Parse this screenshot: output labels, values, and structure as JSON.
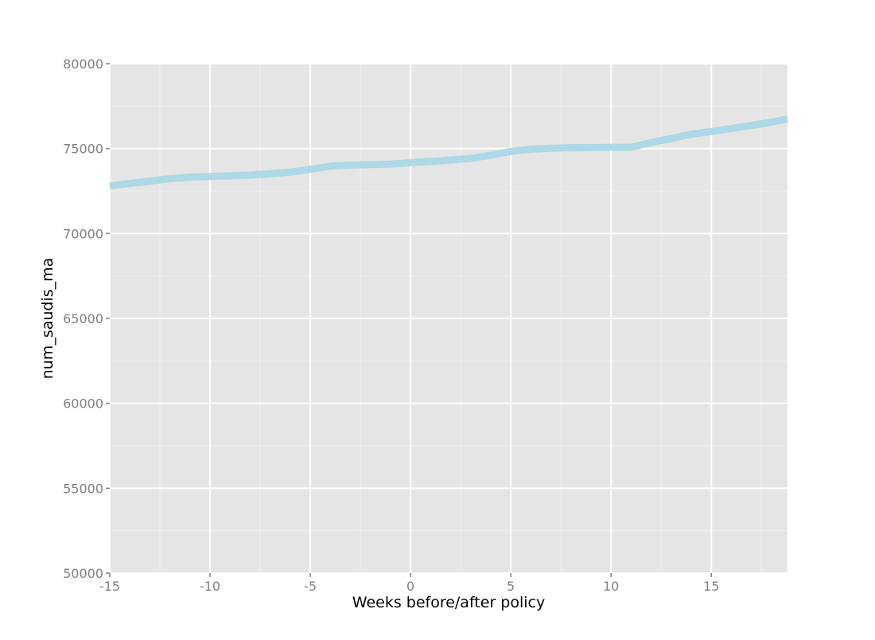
{
  "chart_data": {
    "type": "line",
    "title": "",
    "xlabel": "Weeks before/after policy",
    "ylabel": "num_saudis_ma",
    "xlim": [
      -15,
      18.8
    ],
    "ylim": [
      50000,
      80000
    ],
    "x_ticks": [
      -15,
      -10,
      -5,
      0,
      5,
      10,
      15
    ],
    "x_tick_labels": [
      "-15",
      "-10",
      "-5",
      "0",
      "5",
      "10",
      "15"
    ],
    "y_ticks": [
      50000,
      55000,
      60000,
      65000,
      70000,
      75000,
      80000
    ],
    "y_tick_labels": [
      "50000",
      "55000",
      "60000",
      "65000",
      "70000",
      "75000",
      "80000"
    ],
    "grid": true,
    "colors": {
      "panel_background": "#e5e5e5",
      "major_grid": "#ffffff",
      "minor_grid": "#efefef",
      "line": "#add8e6",
      "tick_label": "#808080",
      "axis_title": "#000000"
    },
    "series": [
      {
        "x": [
          -15,
          -14,
          -13,
          -12,
          -11,
          -10,
          -9,
          -8,
          -7,
          -6,
          -5,
          -4,
          -3,
          -2,
          -1,
          0,
          1,
          2,
          3,
          4,
          5,
          6,
          7,
          8,
          9,
          10,
          11,
          12,
          13,
          14,
          15,
          16,
          17,
          18,
          18.8
        ],
        "values": [
          72800,
          72950,
          73080,
          73230,
          73320,
          73360,
          73390,
          73440,
          73520,
          73610,
          73780,
          73960,
          74030,
          74060,
          74090,
          74170,
          74240,
          74330,
          74420,
          74610,
          74830,
          74960,
          75020,
          75050,
          75060,
          75070,
          75080,
          75360,
          75590,
          75850,
          76000,
          76190,
          76360,
          76560,
          76750
        ]
      }
    ]
  }
}
